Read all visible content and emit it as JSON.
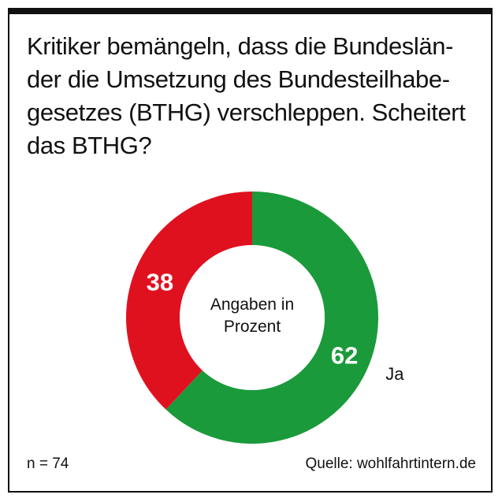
{
  "title_lines": [
    "Kritiker bemängeln, dass die Bundeslän-",
    "der die Umsetzung des Bundesteilhabe-",
    "gesetzes (BTHG) verschleppen. Scheitert",
    "das BTHG?"
  ],
  "center_label_lines": [
    "Angaben in",
    "Prozent"
  ],
  "footer": {
    "n": "n = 74",
    "source": "Quelle: wohlfahrtintern.de"
  },
  "colors": {
    "green": "#1a9a3a",
    "red": "#e0111f",
    "text": "#111111"
  },
  "chart_data": {
    "type": "pie",
    "variant": "donut",
    "unit": "%",
    "slices": [
      {
        "label": "Ja",
        "value": 62,
        "color": "#1a9a3a"
      },
      {
        "label": "",
        "value": 38,
        "color": "#e0111f"
      }
    ]
  }
}
